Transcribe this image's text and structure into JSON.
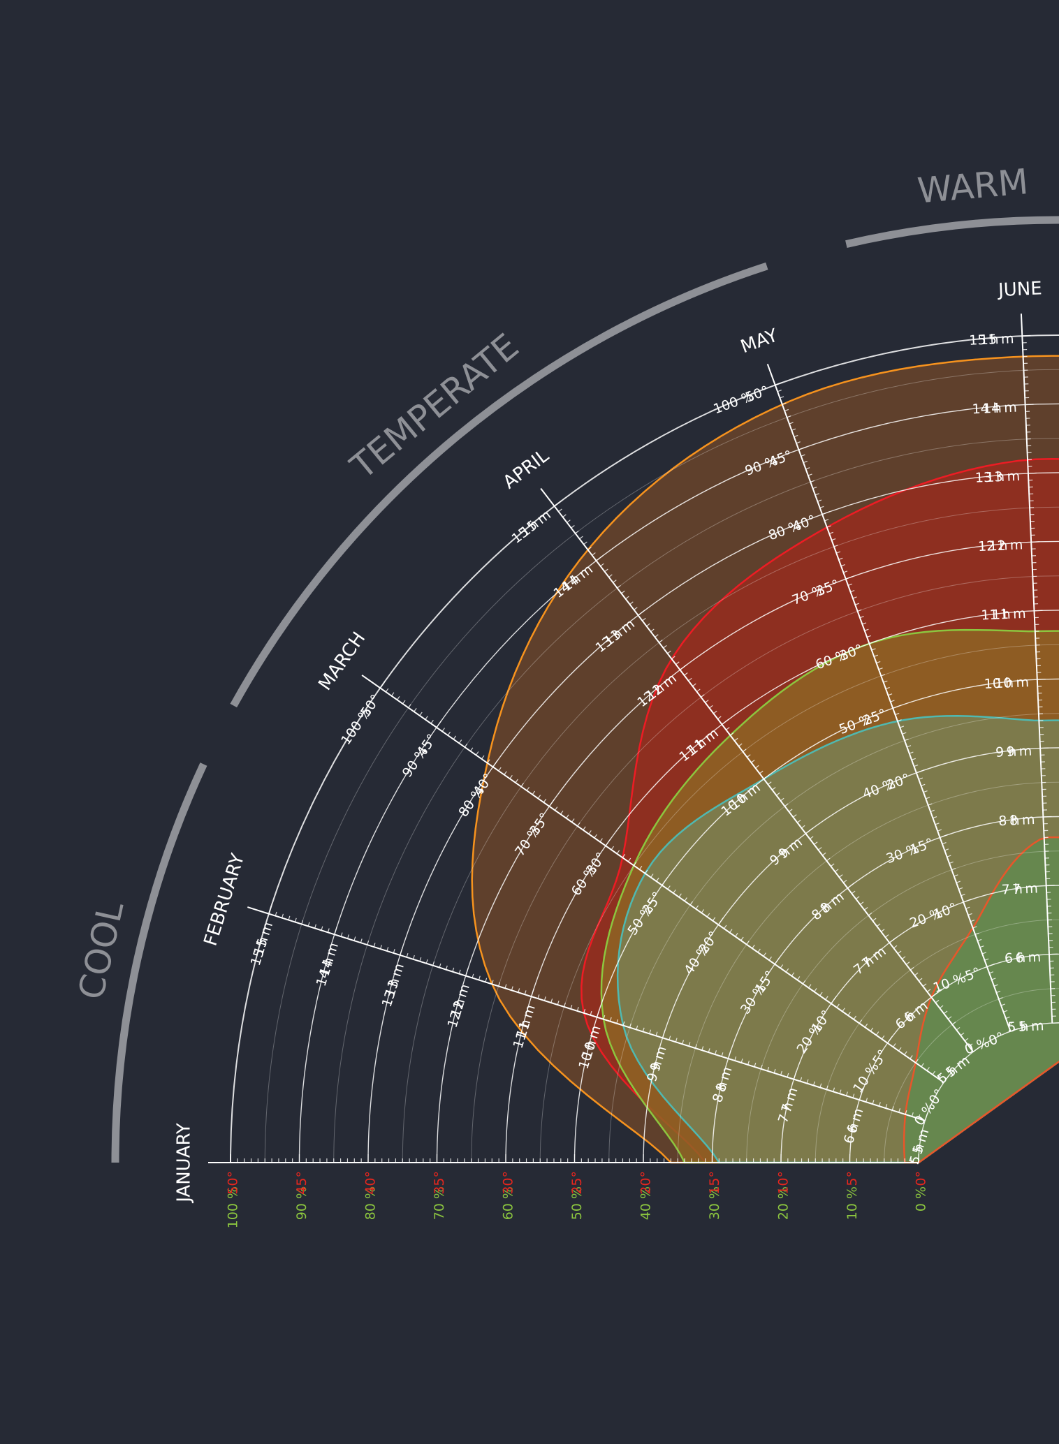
{
  "chart_data": {
    "type": "radial-area",
    "seasons": [
      "COOL",
      "TEMPERATE",
      "WARM"
    ],
    "months": [
      "JANUARY",
      "FEBRUARY",
      "MARCH",
      "APRIL",
      "MAY",
      "JUNE"
    ],
    "scales": {
      "humidity_pct": [
        "100 %",
        "90 %",
        "80 %",
        "70 %",
        "60 %",
        "50 %",
        "40 %",
        "30 %",
        "20 %",
        "10 %",
        "0 %"
      ],
      "temperature_deg": [
        "50°",
        "45°",
        "40°",
        "35°",
        "30°",
        "25°",
        "20°",
        "15°",
        "10°",
        "5°",
        "0°"
      ],
      "daylight_hours": [
        "15 h",
        "14 h",
        "13 h",
        "12 h",
        "11 h",
        "10 h",
        "9 h",
        "8 h",
        "7 h",
        "6 h",
        "5 h"
      ],
      "daylight_minutes": [
        "15 m",
        "14 m",
        "13 m",
        "12 m",
        "11 m",
        "10 m",
        "9 m",
        "8 m",
        "7 m",
        "6 m",
        "5 m"
      ]
    },
    "axis_scale_by_month": {
      "JANUARY": "percent-degree",
      "FEBRUARY": "hours",
      "MARCH": "percent-degree",
      "APRIL": "hours",
      "MAY": "percent-degree",
      "JUNE": "hours"
    },
    "series": [
      {
        "color": "#f7931e",
        "fill": "#6a442a",
        "values": [
          0.36,
          0.66,
          0.81,
          0.92,
          0.97,
          0.97
        ]
      },
      {
        "color": "#ed1c24",
        "fill": "#962d1f",
        "values": [
          0.31,
          0.52,
          0.57,
          0.72,
          0.78,
          0.82
        ]
      },
      {
        "color": "#8cc63f",
        "fill": "#8e6424",
        "values": [
          0.34,
          0.49,
          0.55,
          0.58,
          0.6,
          0.57
        ]
      },
      {
        "color": "#4fb9b1",
        "fill": "#7a7f52",
        "values": [
          0.29,
          0.46,
          0.53,
          0.5,
          0.48,
          0.44
        ]
      },
      {
        "color": "#e8562a",
        "fill": "#62894f",
        "values": [
          0.02,
          0.03,
          0.05,
          0.1,
          0.16,
          0.27
        ]
      }
    ],
    "grid": true
  }
}
